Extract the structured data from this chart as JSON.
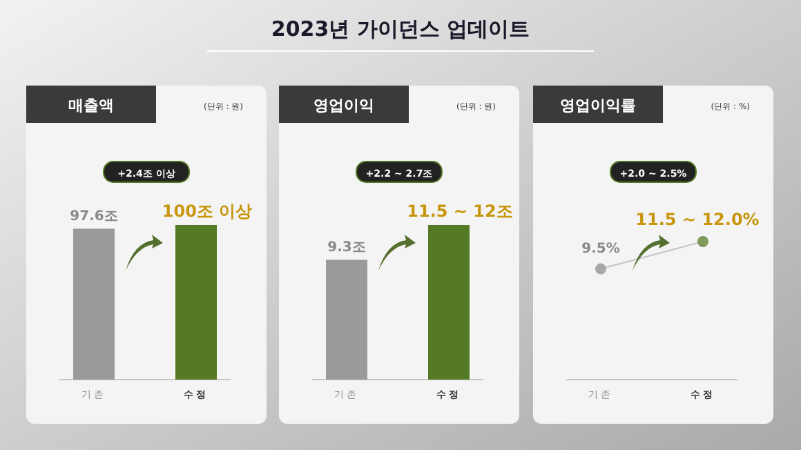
{
  "chart_data": [
    {
      "type": "other",
      "title": "2023년 가이던스 업데이트"
    },
    {
      "type": "bar",
      "title": "매출액",
      "subtitle": "(단위 : 원)",
      "annotations": [
        "+2.4조 이상"
      ],
      "categories": [
        "기존",
        "수정"
      ],
      "values": [
        97.6,
        100
      ],
      "value_labels": [
        "97.6조",
        "100조 이상"
      ],
      "colors": [
        "#9a9a9a",
        "#557a25"
      ]
    },
    {
      "type": "bar",
      "title": "영업이익",
      "subtitle": "(단위 : 원)",
      "annotations": [
        "+2.2 ~ 2.7조"
      ],
      "categories": [
        "기존",
        "수정"
      ],
      "values": [
        9.3,
        12
      ],
      "value_labels": [
        "9.3조",
        "11.5 ~ 12조"
      ],
      "colors": [
        "#9a9a9a",
        "#557a25"
      ]
    },
    {
      "type": "line",
      "title": "영업이익률",
      "subtitle": "(단위 : %)",
      "annotations": [
        "+2.0 ~ 2.5%"
      ],
      "categories": [
        "기존",
        "수정"
      ],
      "values": [
        9.5,
        12.0
      ],
      "value_labels": [
        "9.5%",
        "11.5 ~ 12.0%"
      ],
      "colors": [
        "#a8a8a8",
        "#7f9a5a"
      ],
      "marker": "circle"
    }
  ]
}
